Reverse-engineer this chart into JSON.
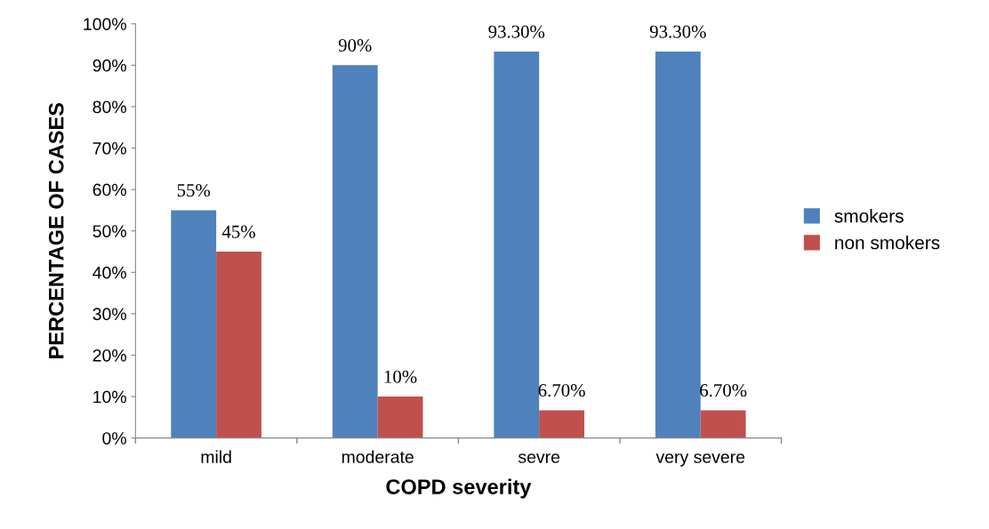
{
  "chart_data": {
    "type": "bar",
    "xlabel": "COPD severity",
    "ylabel": "PERCENTAGE OF CASES",
    "categories": [
      "mild",
      "moderate",
      "sevre",
      "very severe"
    ],
    "series": [
      {
        "name": "smokers",
        "color": "#4f81bd",
        "values": [
          55,
          90,
          93.3,
          93.3
        ],
        "value_labels": [
          "55%",
          "90%",
          "93.30%",
          "93.30%"
        ]
      },
      {
        "name": "non smokers",
        "color": "#c0504d",
        "values": [
          45,
          10,
          6.7,
          6.7
        ],
        "value_labels": [
          "45%",
          "10%",
          "6.70%",
          "6.70%"
        ]
      }
    ],
    "ylim": [
      0,
      100
    ],
    "yticks": [
      {
        "value": 0,
        "label": "0%"
      },
      {
        "value": 10,
        "label": "10%"
      },
      {
        "value": 20,
        "label": "20%"
      },
      {
        "value": 30,
        "label": "30%"
      },
      {
        "value": 40,
        "label": "40%"
      },
      {
        "value": 50,
        "label": "50%"
      },
      {
        "value": 60,
        "label": "60%"
      },
      {
        "value": 70,
        "label": "70%"
      },
      {
        "value": 80,
        "label": "80%"
      },
      {
        "value": 90,
        "label": "90%"
      },
      {
        "value": 100,
        "label": "100%"
      }
    ],
    "grid": false,
    "legend": "right"
  }
}
